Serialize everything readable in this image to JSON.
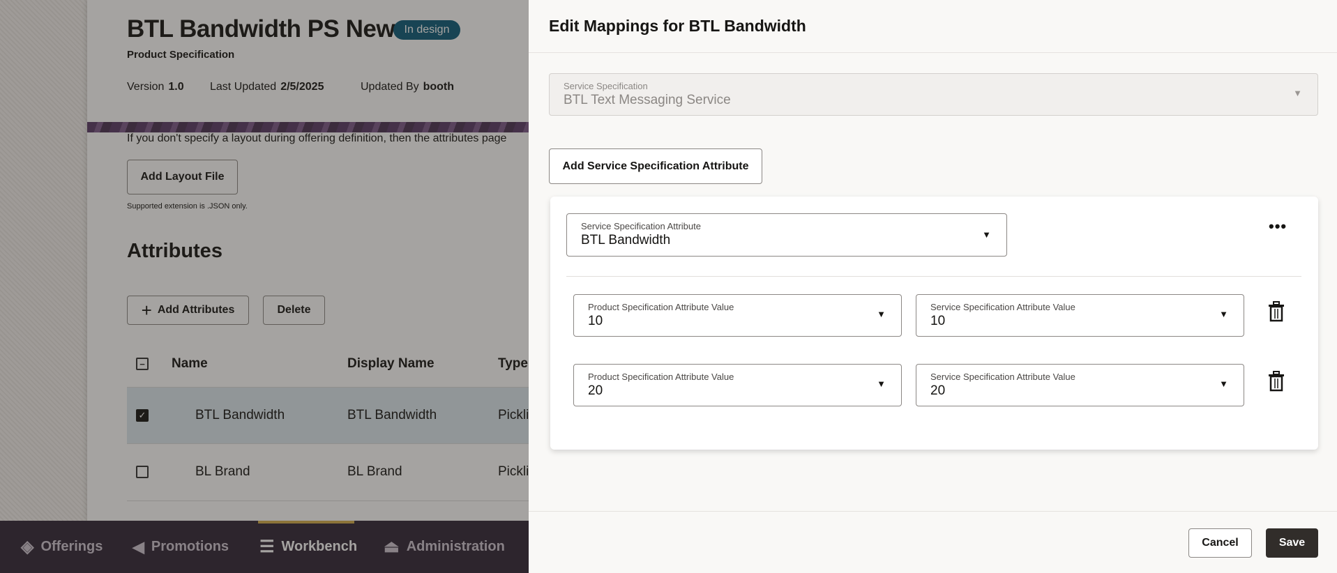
{
  "background_page": {
    "title": "BTL Bandwidth PS New",
    "status_badge": "In design",
    "subtitle": "Product Specification",
    "meta": {
      "version_label": "Version",
      "version": "1.0",
      "last_updated_label": "Last Updated",
      "last_updated": "2/5/2025",
      "updated_by_label": "Updated By",
      "updated_by": "booth"
    },
    "layout_hint": "If you don't specify a layout during offering definition, then the attributes page",
    "add_layout_file": "Add Layout File",
    "supported_ext": "Supported extension is .JSON only.",
    "attributes_heading": "Attributes",
    "add_attributes": "Add Attributes",
    "delete": "Delete",
    "table": {
      "columns": [
        "Name",
        "Display Name",
        "Type"
      ],
      "rows": [
        {
          "name": "BTL Bandwidth",
          "display_name": "BTL Bandwidth",
          "type": "Pickli",
          "checked": true
        },
        {
          "name": "BL Brand",
          "display_name": "BL Brand",
          "type": "Pickli",
          "checked": false
        }
      ]
    }
  },
  "nav": {
    "items": [
      {
        "label": "Offerings",
        "icon": "tag-icon"
      },
      {
        "label": "Promotions",
        "icon": "megaphone-icon"
      },
      {
        "label": "Workbench",
        "icon": "list-icon",
        "active": true
      },
      {
        "label": "Administration",
        "icon": "flask-icon"
      }
    ]
  },
  "drawer": {
    "title": "Edit Mappings for BTL Bandwidth",
    "service_spec": {
      "label": "Service Specification",
      "value": "BTL Text Messaging Service",
      "disabled": true
    },
    "add_ssa_button": "Add Service Specification Attribute",
    "ssa": {
      "label": "Service Specification Attribute",
      "value": "BTL Bandwidth"
    },
    "mappings": [
      {
        "product_label": "Product Specification Attribute Value",
        "product_value": "10",
        "service_label": "Service Specification Attribute Value",
        "service_value": "10"
      },
      {
        "product_label": "Product Specification Attribute Value",
        "product_value": "20",
        "service_label": "Service Specification Attribute Value",
        "service_value": "20"
      }
    ],
    "cancel": "Cancel",
    "save": "Save"
  },
  "colors": {
    "badge": "#0d5c7a",
    "nav_bg": "#312638",
    "nav_active": "#d4ae4c",
    "save_bg": "#312d2a"
  }
}
